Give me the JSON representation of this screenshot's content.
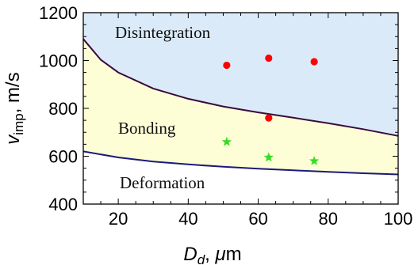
{
  "chart_data": {
    "type": "scatter",
    "xlim": [
      10,
      100
    ],
    "ylim": [
      400,
      1200
    ],
    "x_ticks": [
      20,
      40,
      60,
      80,
      100
    ],
    "y_ticks": [
      400,
      600,
      800,
      1000,
      1200
    ],
    "x_tick_labels": [
      "20",
      "40",
      "60",
      "80",
      "100"
    ],
    "y_tick_labels": [
      "400",
      "600",
      "800",
      "1000",
      "1200"
    ],
    "xlabel": {
      "var": "D",
      "sub": "d",
      "rest": ", ",
      "mu": "μ",
      "unit": "m"
    },
    "ylabel": {
      "var": "v",
      "sub": "imp",
      "rest": ", m/s"
    },
    "grid": false,
    "regions": [
      {
        "label": "Disintegration",
        "color": "#dbeaf9"
      },
      {
        "label": "Bonding",
        "color": "#fdfdd6"
      },
      {
        "label": "Deformation",
        "color": "#ffffff"
      }
    ],
    "curves": [
      {
        "role": "upper-boundary",
        "color": "#3a0a3f",
        "points": [
          [
            10,
            1090
          ],
          [
            15,
            1003
          ],
          [
            20,
            950
          ],
          [
            30,
            883
          ],
          [
            40,
            840
          ],
          [
            50,
            808
          ],
          [
            60,
            783
          ],
          [
            70,
            761
          ],
          [
            80,
            738
          ],
          [
            90,
            713
          ],
          [
            100,
            685
          ]
        ]
      },
      {
        "role": "lower-boundary",
        "color": "#1a1a7a",
        "points": [
          [
            10,
            620
          ],
          [
            20,
            595
          ],
          [
            30,
            578
          ],
          [
            40,
            566
          ],
          [
            50,
            556
          ],
          [
            60,
            548
          ],
          [
            70,
            541
          ],
          [
            80,
            535
          ],
          [
            90,
            529
          ],
          [
            100,
            524
          ]
        ]
      }
    ],
    "series": [
      {
        "marker": "circle",
        "color": "#ff0000",
        "points": [
          [
            51,
            980
          ],
          [
            63,
            1010
          ],
          [
            76,
            995
          ],
          [
            63,
            760
          ]
        ]
      },
      {
        "marker": "star",
        "color": "#33dd22",
        "points": [
          [
            51,
            660
          ],
          [
            63,
            595
          ],
          [
            76,
            580
          ]
        ]
      }
    ]
  }
}
